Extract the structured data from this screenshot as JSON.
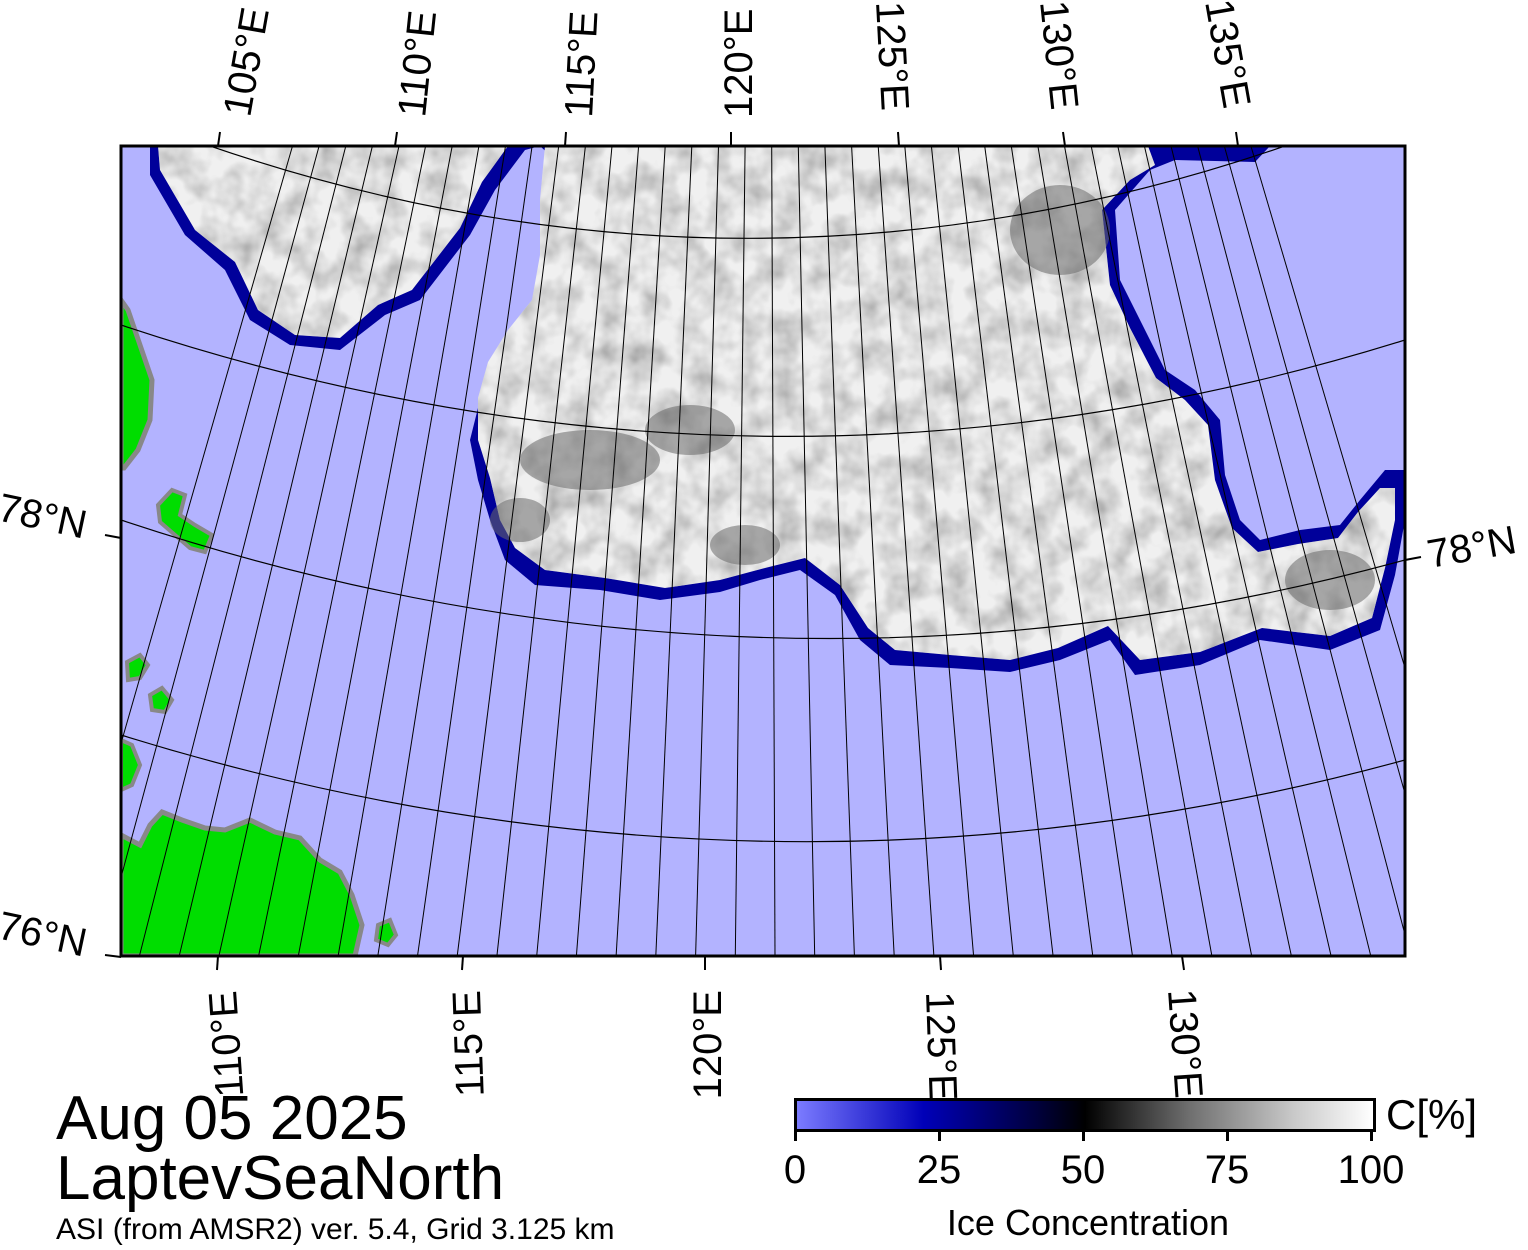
{
  "map": {
    "colors": {
      "open_water": "#b3b3ff",
      "land": "#00dd00",
      "land_edge": "#888888",
      "ice_high": "#f2f2f2",
      "ice_edge": "#00009a",
      "graticule": "#000000"
    },
    "top_lon_labels": [
      "105°E",
      "110°E",
      "115°E",
      "120°E",
      "125°E",
      "130°E",
      "135°E"
    ],
    "bottom_lon_labels": [
      "110°E",
      "115°E",
      "120°E",
      "125°E",
      "130°E"
    ],
    "lat_labels": {
      "left_78": "78°N",
      "right_78": "78°N",
      "left_76": "76°N"
    }
  },
  "info": {
    "date": "Aug 05 2025",
    "region": "LaptevSeaNorth",
    "product": "ASI (from AMSR2) ver. 5.4,  Grid 3.125 km"
  },
  "colorbar": {
    "unit": "C[%]",
    "title": "Ice Concentration",
    "ticks": [
      "0",
      "25",
      "50",
      "75",
      "100"
    ]
  }
}
